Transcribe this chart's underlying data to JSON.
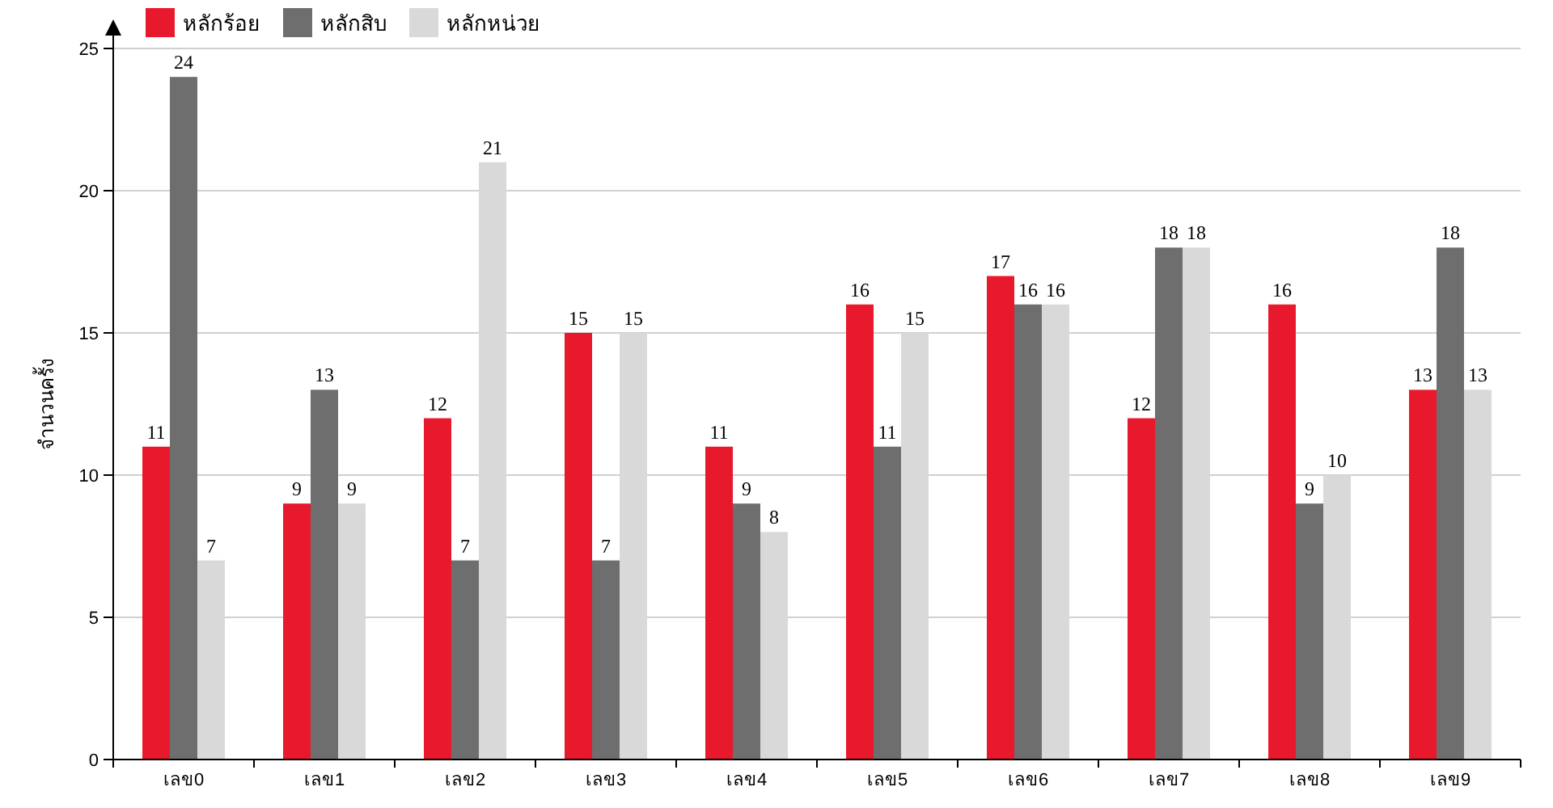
{
  "chart_data": {
    "type": "bar",
    "ylabel": "จำนวนครั้ง",
    "categories": [
      "เลข0",
      "เลข1",
      "เลข2",
      "เลข3",
      "เลข4",
      "เลข5",
      "เลข6",
      "เลข7",
      "เลข8",
      "เลข9"
    ],
    "series": [
      {
        "name": "หลักร้อย",
        "color": "#e8192c",
        "values": [
          11,
          9,
          12,
          15,
          11,
          16,
          17,
          12,
          16,
          13
        ]
      },
      {
        "name": "หลักสิบ",
        "color": "#6e6e6e",
        "values": [
          24,
          13,
          7,
          7,
          9,
          11,
          16,
          18,
          9,
          18
        ]
      },
      {
        "name": "หลักหน่วย",
        "color": "#d9d9d9",
        "values": [
          7,
          9,
          21,
          15,
          8,
          15,
          16,
          18,
          10,
          13
        ]
      }
    ],
    "ylim": [
      0,
      25
    ],
    "yticks": [
      0,
      5,
      10,
      15,
      20,
      25
    ],
    "grid": "y",
    "legend": "top left",
    "data_labels": true
  }
}
